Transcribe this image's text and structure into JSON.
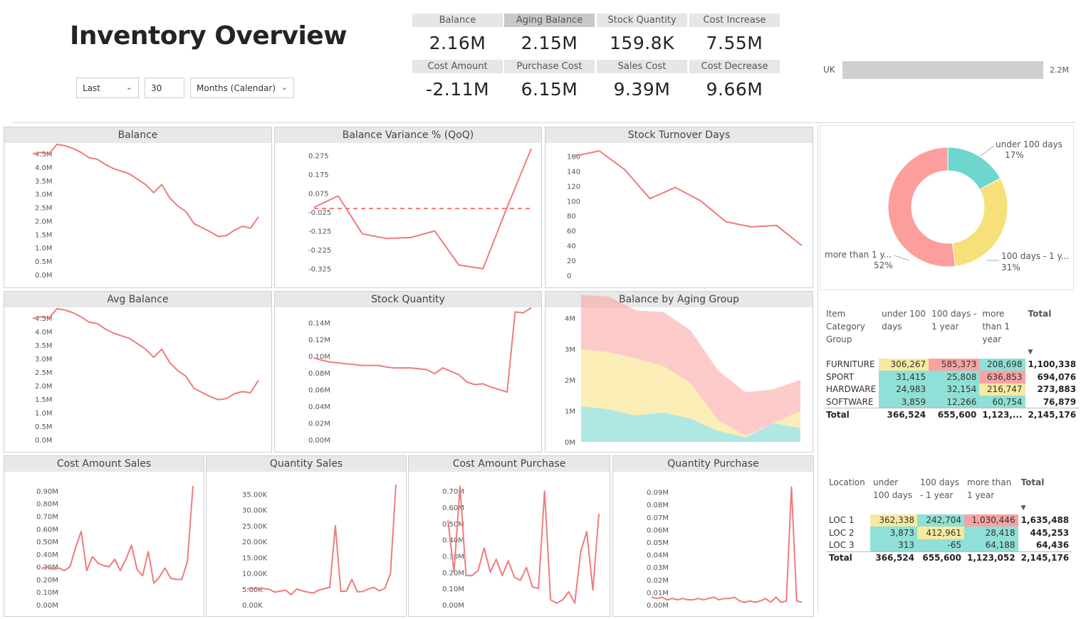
{
  "header": {
    "title": "Inventory Overview"
  },
  "filters": {
    "period": "Last",
    "count": "30",
    "unit": "Months (Calendar)"
  },
  "kpis": [
    {
      "label": "Balance",
      "value": "2.16M"
    },
    {
      "label": "Aging Balance",
      "value": "2.15M"
    },
    {
      "label": "Stock Quantity",
      "value": "159.8K"
    },
    {
      "label": "Cost Increase",
      "value": "7.55M"
    },
    {
      "label": "Cost Amount",
      "value": "-2.11M"
    },
    {
      "label": "Purchase Cost",
      "value": "6.15M"
    },
    {
      "label": "Sales Cost",
      "value": "9.39M"
    },
    {
      "label": "Cost Decrease",
      "value": "9.66M"
    }
  ],
  "colors": {
    "line": "#f07b7b",
    "teal": "#6ed6cc",
    "yellow": "#f7e07a",
    "pink": "#fc9e9e",
    "bar": "#cfcfcf",
    "heat_yellow": "#f6eaa2",
    "heat_red": "#f7a3a3",
    "heat_teal": "#8fe0d6"
  },
  "chart_data": [
    {
      "id": "uk-bar",
      "type": "bar",
      "categories": [
        "UK"
      ],
      "values": [
        2.2
      ],
      "data_label": "2.2M",
      "title": ""
    },
    {
      "id": "balance",
      "type": "line",
      "title": "Balance",
      "ticks": [
        "4.5M",
        "4.0M",
        "3.5M",
        "3.0M",
        "2.5M",
        "2.0M",
        "1.5M",
        "1.0M",
        "0.5M",
        "0.0M"
      ],
      "ylim": [
        0,
        4.9
      ],
      "values": [
        4.5,
        4.55,
        4.5,
        4.85,
        4.8,
        4.7,
        4.55,
        4.35,
        4.3,
        4.1,
        3.95,
        3.85,
        3.75,
        3.55,
        3.35,
        3.05,
        3.35,
        2.85,
        2.55,
        2.35,
        1.9,
        1.75,
        1.6,
        1.42,
        1.45,
        1.65,
        1.8,
        1.73,
        2.15
      ]
    },
    {
      "id": "variance",
      "type": "line",
      "title": "Balance Variance % (QoQ)",
      "ticks": [
        "0.275",
        "0.175",
        "0.075",
        "-0.025",
        "-0.125",
        "-0.225",
        "-0.325"
      ],
      "ylim": [
        -0.36,
        0.31
      ],
      "values": [
        0.0,
        0.06,
        -0.14,
        -0.165,
        -0.16,
        -0.125,
        -0.305,
        -0.325,
        0.0,
        0.31
      ],
      "reference": -0.006
    },
    {
      "id": "turnover",
      "type": "line",
      "title": "Stock Turnover Days",
      "ticks": [
        "160",
        "140",
        "120",
        "100",
        "80",
        "60",
        "40",
        "20",
        "0"
      ],
      "ylim": [
        0,
        170
      ],
      "values": [
        160,
        167,
        142,
        103,
        118,
        100,
        72,
        65,
        67,
        40
      ]
    },
    {
      "id": "avg-balance",
      "type": "line",
      "title": "Avg Balance",
      "ticks": [
        "4.5M",
        "4.0M",
        "3.5M",
        "3.0M",
        "2.5M",
        "2.0M",
        "1.5M",
        "1.0M",
        "0.5M",
        "0.0M"
      ],
      "ylim": [
        0,
        4.9
      ],
      "values": [
        4.5,
        4.55,
        4.5,
        4.85,
        4.8,
        4.7,
        4.55,
        4.35,
        4.3,
        4.1,
        3.95,
        3.85,
        3.75,
        3.55,
        3.35,
        3.05,
        3.35,
        2.85,
        2.55,
        2.35,
        1.9,
        1.75,
        1.6,
        1.48,
        1.52,
        1.7,
        1.78,
        1.74,
        2.2
      ]
    },
    {
      "id": "stock-qty",
      "type": "line",
      "title": "Stock Quantity",
      "ticks": [
        "0.14M",
        "0.12M",
        "0.10M",
        "0.08M",
        "0.06M",
        "0.04M",
        "0.02M",
        "0.00M"
      ],
      "ylim": [
        0,
        0.15
      ],
      "values": [
        0.098,
        0.095,
        0.093,
        0.092,
        0.091,
        0.09,
        0.089,
        0.089,
        0.089,
        0.087,
        0.086,
        0.086,
        0.086,
        0.085,
        0.084,
        0.079,
        0.086,
        0.082,
        0.078,
        0.069,
        0.066,
        0.067,
        0.063,
        0.06,
        0.057,
        0.153,
        0.152,
        0.158
      ]
    },
    {
      "id": "aging",
      "type": "area",
      "title": "Balance by Aging Group",
      "ticks": [
        "4M",
        "3M",
        "2M",
        "1M",
        "0M"
      ],
      "ylim": [
        0,
        4.6
      ],
      "series": [
        {
          "name": "under 100 days",
          "values": [
            1.15,
            1.05,
            0.85,
            0.95,
            0.75,
            0.35,
            0.15,
            0.6,
            0.45
          ]
        },
        {
          "name": "100 days - 1 year",
          "values": [
            1.85,
            1.85,
            1.85,
            1.5,
            1.15,
            0.35,
            0.05,
            0.0,
            0.55
          ]
        },
        {
          "name": "more than 1 year",
          "values": [
            1.75,
            1.8,
            1.55,
            1.75,
            1.7,
            1.6,
            1.4,
            1.1,
            1.0
          ]
        }
      ]
    },
    {
      "id": "cost-sales",
      "type": "line",
      "title": "Cost Amount Sales",
      "ticks": [
        "0.90M",
        "0.80M",
        "0.70M",
        "0.60M",
        "0.50M",
        "0.40M",
        "0.30M",
        "0.20M",
        "0.10M",
        "0.00M"
      ],
      "ylim": [
        0,
        0.95
      ],
      "values": [
        0.29,
        0.3,
        0.28,
        0.29,
        0.27,
        0.3,
        0.45,
        0.58,
        0.27,
        0.38,
        0.33,
        0.31,
        0.3,
        0.36,
        0.27,
        0.36,
        0.47,
        0.28,
        0.23,
        0.42,
        0.17,
        0.22,
        0.29,
        0.21,
        0.2,
        0.2,
        0.34,
        0.94
      ]
    },
    {
      "id": "qty-sales",
      "type": "line",
      "title": "Quantity Sales",
      "ticks": [
        "35.00K",
        "30.00K",
        "25.00K",
        "20.00K",
        "15.00K",
        "10.00K",
        "5.00K",
        "0.00K"
      ],
      "ylim": [
        0,
        38
      ],
      "values": [
        5,
        5.2,
        5,
        5.1,
        4.9,
        4,
        4.3,
        4.6,
        3.2,
        5,
        4.4,
        4,
        3.7,
        4.6,
        5.1,
        5.5,
        25,
        4.2,
        4.3,
        8,
        4.1,
        4.2,
        5,
        5.5,
        4.4,
        5.2,
        9.9,
        38
      ]
    },
    {
      "id": "cost-purchase",
      "type": "line",
      "title": "Cost Amount Purchase",
      "ticks": [
        "0.70M",
        "0.60M",
        "0.50M",
        "0.40M",
        "0.30M",
        "0.20M",
        "0.10M",
        "0.00M"
      ],
      "ylim": [
        0,
        0.74
      ],
      "values": [
        0.52,
        0.2,
        0.73,
        0.18,
        0.18,
        0.21,
        0.35,
        0.2,
        0.28,
        0.18,
        0.27,
        0.17,
        0.15,
        0.23,
        0.11,
        0.1,
        0.7,
        0.03,
        0.01,
        0.03,
        0.08,
        0.01,
        0.33,
        0.45,
        0.09,
        0.56
      ]
    },
    {
      "id": "qty-purchase",
      "type": "line",
      "title": "Quantity Purchase",
      "ticks": [
        "0.09M",
        "0.08M",
        "0.07M",
        "0.06M",
        "0.05M",
        "0.04M",
        "0.03M",
        "0.02M",
        "0.01M",
        "0.00M"
      ],
      "ylim": [
        0,
        0.096
      ],
      "values": [
        0.006,
        0.005,
        0.006,
        0.004,
        0.005,
        0.004,
        0.005,
        0.004,
        0.004,
        0.005,
        0.004,
        0.005,
        0.006,
        0.004,
        0.005,
        0.005,
        0.006,
        0.003,
        0.002,
        0.003,
        0.002,
        0.003,
        0.005,
        0.002,
        0.006,
        0.002,
        0.003,
        0.094,
        0.003,
        0.002
      ]
    },
    {
      "id": "aging-donut",
      "type": "pie",
      "title": "",
      "categories": [
        "under 100 days",
        "100 days - 1 year",
        "more than 1 year"
      ],
      "values": [
        17,
        31,
        52
      ],
      "labels": [
        {
          "name": "under 100 days",
          "pct": "17%"
        },
        {
          "name": "100 days - 1 y...",
          "pct": "31%"
        },
        {
          "name": "more than 1 y...",
          "pct": "52%"
        }
      ]
    },
    {
      "id": "category-matrix",
      "type": "table",
      "header": {
        "group": [
          "Item",
          "Category",
          "Group"
        ],
        "c1": [
          "under 100",
          "days"
        ],
        "c2": [
          "100 days -",
          "1 year"
        ],
        "c3": [
          "more",
          "than 1",
          "year"
        ],
        "total": "Total"
      },
      "rows": [
        {
          "name": "FURNITURE",
          "c1": "306,267",
          "c2": "585,373",
          "c3": "208,698",
          "total": "1,100,338"
        },
        {
          "name": "SPORT",
          "c1": "31,415",
          "c2": "25,808",
          "c3": "636,853",
          "total": "694,076"
        },
        {
          "name": "HARDWARE",
          "c1": "24,983",
          "c2": "32,154",
          "c3": "216,747",
          "total": "273,883"
        },
        {
          "name": "SOFTWARE",
          "c1": "3,859",
          "c2": "12,266",
          "c3": "60,754",
          "total": "76,879"
        }
      ],
      "totals": {
        "name": "Total",
        "c1": "366,524",
        "c2": "655,600",
        "c3": "1,123,...",
        "total": "2,145,176"
      }
    },
    {
      "id": "location-matrix",
      "type": "table",
      "header": {
        "group": [
          "Location"
        ],
        "c1": [
          "under",
          "100 days"
        ],
        "c2": [
          "100 days",
          "- 1 year"
        ],
        "c3": [
          "more than",
          "1 year"
        ],
        "total": "Total"
      },
      "rows": [
        {
          "name": "LOC 1",
          "c1": "362,338",
          "c2": "242,704",
          "c3": "1,030,446",
          "total": "1,635,488"
        },
        {
          "name": "LOC 2",
          "c1": "3,873",
          "c2": "412,961",
          "c3": "28,418",
          "total": "445,253"
        },
        {
          "name": "LOC 3",
          "c1": "313",
          "c2": "-65",
          "c3": "64,188",
          "total": "64,436"
        }
      ],
      "totals": {
        "name": "Total",
        "c1": "366,524",
        "c2": "655,600",
        "c3": "1,123,052",
        "total": "2,145,176"
      }
    }
  ]
}
